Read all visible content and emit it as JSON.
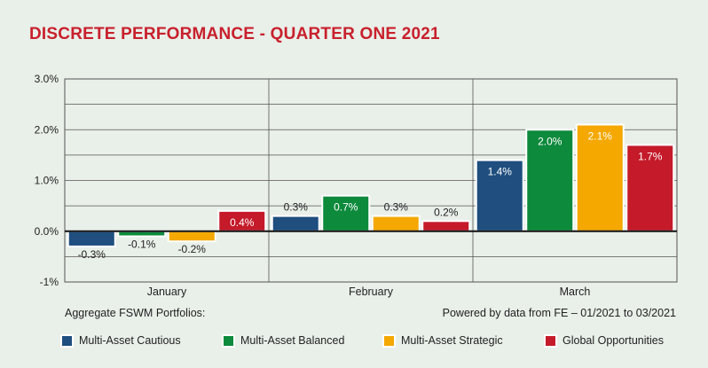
{
  "title": "DISCRETE PERFORMANCE - QUARTER ONE 2021",
  "footer": {
    "left": "Aggregate FSWM Portfolios:",
    "right": "Powered by data from FE – 01/2021 to 03/2021"
  },
  "chart_data": {
    "type": "bar",
    "categories": [
      "January",
      "February",
      "March"
    ],
    "series": [
      {
        "name": "Multi-Asset Cautious",
        "color": "#1f4e7f",
        "values": [
          -0.3,
          0.3,
          1.4
        ],
        "labels": [
          "-0.3%",
          "0.3%",
          "1.4%"
        ]
      },
      {
        "name": "Multi-Asset Balanced",
        "color": "#0d8a3c",
        "values": [
          -0.1,
          0.7,
          2.0
        ],
        "labels": [
          "-0.1%",
          "0.7%",
          "2.0%"
        ]
      },
      {
        "name": "Multi-Asset Strategic",
        "color": "#f4a800",
        "values": [
          -0.2,
          0.3,
          2.1
        ],
        "labels": [
          "-0.2%",
          "0.3%",
          "2.1%"
        ]
      },
      {
        "name": "Global Opportunities",
        "color": "#c41a2a",
        "values": [
          0.4,
          0.2,
          1.7
        ],
        "labels": [
          "0.4%",
          "0.2%",
          "1.7%"
        ]
      }
    ],
    "y_ticks": [
      3.0,
      2.0,
      1.0,
      0.0,
      -1
    ],
    "y_tick_labels": [
      "3.0%",
      "2.0%",
      "1.0%",
      "0.0%",
      "-1%"
    ],
    "ylim": [
      -1,
      3
    ],
    "grid": true,
    "legend_position": "bottom"
  }
}
